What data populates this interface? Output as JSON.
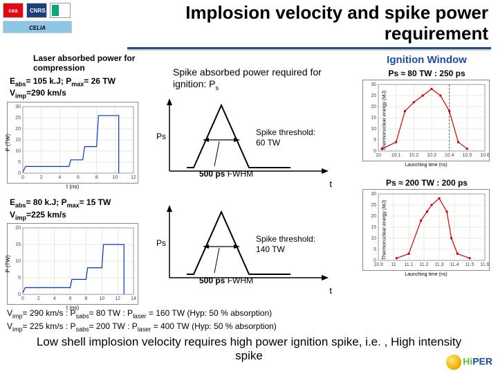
{
  "title": "Implosion velocity and spike power requirement",
  "logos": {
    "cea": "cea",
    "cnrs": "CNRS",
    "bx": "",
    "celia": "CELIA"
  },
  "left": {
    "heading": "Laser absorbed power for compression",
    "row1": {
      "eabs": "E",
      "eabs_sub": "abs",
      "eabs_val": "= 105 k.J; P",
      "pmax_sub": "max",
      "pmax_val": "= 26 TW",
      "vimp": "V",
      "vimp_sub": "imp",
      "vimp_val": "=290 km/s",
      "chart": {
        "type": "line",
        "xlim": [
          0,
          12
        ],
        "ylim": [
          0,
          30
        ],
        "xticks": [
          0,
          2,
          4,
          6,
          8,
          10,
          12
        ],
        "yticks": [
          0,
          5,
          10,
          15,
          20,
          25,
          30
        ],
        "xlabel": "t (ns)",
        "ylabel": "P (TW)",
        "points": [
          [
            0,
            0.5
          ],
          [
            0.3,
            3
          ],
          [
            5,
            3
          ],
          [
            5.2,
            6
          ],
          [
            6.5,
            6
          ],
          [
            6.7,
            12
          ],
          [
            8,
            12
          ],
          [
            8.2,
            26
          ],
          [
            10.4,
            26
          ],
          [
            10.4,
            0
          ]
        ],
        "line_color": "#0033cc",
        "line_width": 1.2,
        "grid_color": "#d9d4bd",
        "background_color": "#ffffff"
      }
    },
    "row2": {
      "eabs": "E",
      "eabs_sub": "abs",
      "eabs_val": "= 80 k.J; P",
      "pmax_sub": "max",
      "pmax_val": "= 15 TW",
      "vimp": "V",
      "vimp_sub": "imp",
      "vimp_val": "=225 km/s",
      "chart": {
        "type": "line",
        "xlim": [
          0,
          14
        ],
        "ylim": [
          0,
          20
        ],
        "xticks": [
          0,
          2,
          4,
          6,
          8,
          10,
          12,
          14
        ],
        "yticks": [
          0,
          5,
          10,
          15,
          20
        ],
        "xlabel": "t (ns)",
        "ylabel": "P (TW)",
        "points": [
          [
            0,
            0.5
          ],
          [
            0.3,
            2
          ],
          [
            6,
            2
          ],
          [
            6.2,
            4.5
          ],
          [
            8,
            4.5
          ],
          [
            8.2,
            8
          ],
          [
            10,
            8
          ],
          [
            10.2,
            15
          ],
          [
            12.8,
            15
          ],
          [
            12.8,
            0
          ]
        ],
        "line_color": "#0033cc",
        "line_width": 1.2,
        "grid_color": "#d9d4bd",
        "background_color": "#ffffff"
      }
    }
  },
  "mid": {
    "heading": "Spike absorbed power required for ignition: P",
    "heading_sub": "s",
    "ps_label": "Ps",
    "spike1": {
      "threshold": "Spike threshold:",
      "threshold_val": "60 TW",
      "fwhm_val": "500 ps",
      "fwhm": "FWHM",
      "t": "t"
    },
    "spike2": {
      "threshold": "Spike threshold:",
      "threshold_val": "140 TW",
      "fwhm_val": "500 ps",
      "fwhm": "FWHM",
      "t": "t"
    },
    "spike_shape": {
      "points": [
        [
          50,
          110
        ],
        [
          60,
          110
        ],
        [
          100,
          20
        ],
        [
          140,
          110
        ],
        [
          200,
          110
        ]
      ],
      "line_color": "#000000",
      "line_width": 2
    }
  },
  "right": {
    "heading": "Ignition Window",
    "row1": {
      "label": "Ps ≈ 80 TW : 250 ps",
      "chart": {
        "type": "line",
        "xlabel": "Launching time (ns)",
        "ylabel": "Thermonuclear energy (MJ)",
        "xlim": [
          10.0,
          10.6
        ],
        "ylim": [
          0,
          30
        ],
        "xticks": [
          10.0,
          10.1,
          10.2,
          10.3,
          10.4,
          10.5,
          10.6
        ],
        "yticks": [
          0,
          5,
          10,
          15,
          20,
          25,
          30
        ],
        "points": [
          [
            10.02,
            1
          ],
          [
            10.1,
            4
          ],
          [
            10.15,
            18
          ],
          [
            10.2,
            22
          ],
          [
            10.25,
            25
          ],
          [
            10.3,
            28
          ],
          [
            10.35,
            25
          ],
          [
            10.4,
            18
          ],
          [
            10.45,
            4
          ],
          [
            10.5,
            1
          ]
        ],
        "line_color": "#cc0000",
        "line_width": 1.2,
        "dash_x": 10.4,
        "grid_color": "#d9d4bd",
        "background_color": "#ffffff"
      }
    },
    "row2": {
      "label": "Ps ≈ 200 TW : 200 ps",
      "chart": {
        "type": "line",
        "xlabel": "Launching time (ns)",
        "ylabel": "Thermonuclear energy (MJ)",
        "xlim": [
          10.9,
          11.6
        ],
        "ylim": [
          0,
          30
        ],
        "xticks": [
          10.9,
          11.0,
          11.1,
          11.2,
          11.3,
          11.4,
          11.5,
          11.6
        ],
        "yticks": [
          0,
          5,
          10,
          15,
          20,
          25,
          30
        ],
        "points": [
          [
            11.02,
            1
          ],
          [
            11.1,
            3
          ],
          [
            11.18,
            18
          ],
          [
            11.22,
            22
          ],
          [
            11.25,
            25
          ],
          [
            11.3,
            28
          ],
          [
            11.35,
            22
          ],
          [
            11.38,
            10
          ],
          [
            11.42,
            3
          ],
          [
            11.5,
            1
          ]
        ],
        "line_color": "#cc0000",
        "line_width": 1.2,
        "grid_color": "#d9d4bd",
        "background_color": "#ffffff"
      }
    }
  },
  "summary": {
    "line1_a": "V",
    "line1_a_sub": "imp",
    "line1_b": "= 290 km/s : P",
    "line1_b_sub": "sabs",
    "line1_c": "= 80 TW : P",
    "line1_c_sub": "laser",
    "line1_d": " = 160 TW (Hyp: 50 % absorption)",
    "line2_a": "V",
    "line2_a_sub": "imp",
    "line2_b": "= 225 km/s : P",
    "line2_b_sub": "sabs",
    "line2_c": "= 200 TW : P",
    "line2_c_sub": "laser",
    "line2_d": " = 400 TW (Hyp: 50 % absorption)"
  },
  "conclusion": "Low shell implosion velocity requires high power ignition spike, i.e. , High intensity spike",
  "hiper": {
    "hi": "Hi",
    "per": "PER"
  },
  "colors": {
    "title_underline": "#1e4ba0",
    "ign_heading": "#1e4ba0"
  }
}
